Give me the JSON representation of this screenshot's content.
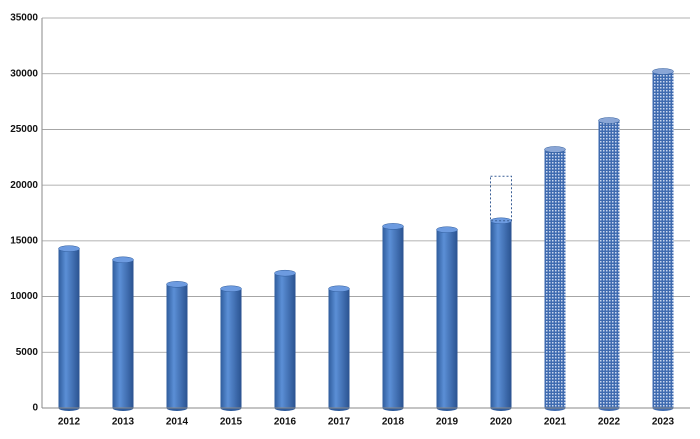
{
  "chart_data": {
    "type": "cylinder-bar",
    "categories": [
      "2012",
      "2013",
      "2014",
      "2015",
      "2016",
      "2017",
      "2018",
      "2019",
      "2020",
      "2021",
      "2022",
      "2023"
    ],
    "values": [
      14300,
      13300,
      11100,
      10700,
      12100,
      10700,
      16300,
      16000,
      16800,
      23200,
      25800,
      30200
    ],
    "dashed_values": [
      null,
      null,
      null,
      null,
      null,
      null,
      null,
      null,
      20800,
      null,
      null,
      null
    ],
    "patterned": [
      false,
      false,
      false,
      false,
      false,
      false,
      false,
      false,
      false,
      true,
      true,
      true
    ],
    "color": "#4a7cc4",
    "ylim": [
      0,
      35000
    ],
    "yticks": [
      0,
      5000,
      10000,
      15000,
      20000,
      25000,
      30000,
      35000
    ],
    "grid": true
  }
}
